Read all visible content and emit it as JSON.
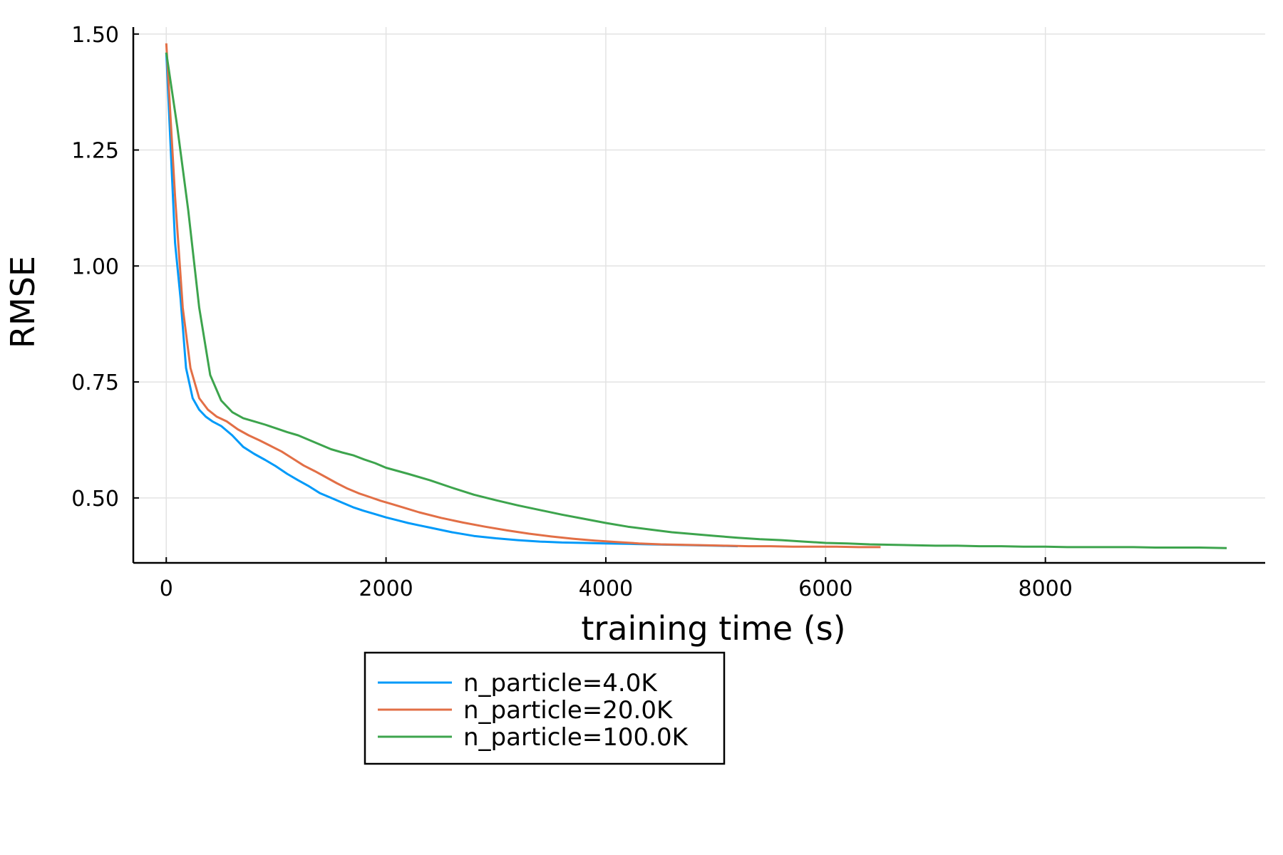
{
  "chart_data": {
    "type": "line",
    "title": "",
    "xlabel": "training time (s)",
    "ylabel": "RMSE",
    "xlim": [
      -300,
      10000
    ],
    "ylim": [
      0.36,
      1.515
    ],
    "xticks": [
      0,
      2000,
      4000,
      6000,
      8000
    ],
    "xtick_labels": [
      "0",
      "2000",
      "4000",
      "6000",
      "8000"
    ],
    "yticks": [
      0.5,
      0.75,
      1.0,
      1.25,
      1.5
    ],
    "ytick_labels": [
      "0.50",
      "0.75",
      "1.00",
      "1.25",
      "1.50"
    ],
    "grid": true,
    "legend_position": "bottom-center, outside below plot",
    "series": [
      {
        "name": "n_particle=4.0K",
        "color": "#009af9",
        "x": [
          0,
          80,
          130,
          180,
          240,
          300,
          360,
          420,
          500,
          600,
          700,
          800,
          900,
          1000,
          1100,
          1200,
          1300,
          1400,
          1500,
          1600,
          1700,
          1800,
          1900,
          2000,
          2100,
          2200,
          2300,
          2400,
          2600,
          2800,
          3000,
          3200,
          3400,
          3600,
          3800,
          4000,
          4200,
          4400,
          4600,
          4800,
          5000,
          5200
        ],
        "y": [
          1.46,
          1.05,
          0.93,
          0.78,
          0.715,
          0.69,
          0.675,
          0.665,
          0.655,
          0.635,
          0.61,
          0.595,
          0.582,
          0.568,
          0.552,
          0.538,
          0.525,
          0.51,
          0.5,
          0.49,
          0.48,
          0.472,
          0.465,
          0.458,
          0.452,
          0.446,
          0.441,
          0.436,
          0.426,
          0.418,
          0.413,
          0.409,
          0.406,
          0.404,
          0.403,
          0.402,
          0.401,
          0.4,
          0.399,
          0.398,
          0.397,
          0.396
        ]
      },
      {
        "name": "n_particle=20.0K",
        "color": "#e26f46",
        "x": [
          0,
          80,
          150,
          220,
          300,
          380,
          460,
          550,
          650,
          750,
          850,
          950,
          1050,
          1150,
          1250,
          1350,
          1450,
          1550,
          1650,
          1750,
          1850,
          1950,
          2050,
          2150,
          2300,
          2500,
          2700,
          2900,
          3100,
          3300,
          3500,
          3700,
          3900,
          4100,
          4300,
          4500,
          4700,
          4900,
          5100,
          5300,
          5500,
          5700,
          5900,
          6100,
          6300,
          6500
        ],
        "y": [
          1.48,
          1.15,
          0.91,
          0.78,
          0.715,
          0.69,
          0.675,
          0.665,
          0.648,
          0.635,
          0.624,
          0.612,
          0.6,
          0.585,
          0.57,
          0.558,
          0.545,
          0.532,
          0.52,
          0.51,
          0.502,
          0.494,
          0.487,
          0.48,
          0.469,
          0.457,
          0.447,
          0.438,
          0.43,
          0.423,
          0.417,
          0.412,
          0.408,
          0.405,
          0.402,
          0.4,
          0.399,
          0.398,
          0.397,
          0.396,
          0.396,
          0.395,
          0.395,
          0.395,
          0.394,
          0.394
        ]
      },
      {
        "name": "n_particle=100.0K",
        "color": "#3da44d",
        "x": [
          0,
          100,
          200,
          300,
          400,
          500,
          600,
          700,
          800,
          900,
          1000,
          1100,
          1200,
          1300,
          1400,
          1500,
          1600,
          1700,
          1800,
          1900,
          2000,
          2200,
          2400,
          2600,
          2800,
          3000,
          3200,
          3400,
          3600,
          3800,
          4000,
          4200,
          4400,
          4600,
          4800,
          5000,
          5200,
          5400,
          5600,
          5800,
          6000,
          6200,
          6400,
          6600,
          6800,
          7000,
          7200,
          7400,
          7600,
          7800,
          8000,
          8200,
          8400,
          8600,
          8800,
          9000,
          9200,
          9400,
          9650
        ],
        "y": [
          1.46,
          1.3,
          1.12,
          0.91,
          0.765,
          0.71,
          0.685,
          0.672,
          0.665,
          0.658,
          0.65,
          0.642,
          0.635,
          0.625,
          0.615,
          0.605,
          0.598,
          0.592,
          0.583,
          0.575,
          0.565,
          0.552,
          0.538,
          0.522,
          0.507,
          0.495,
          0.484,
          0.474,
          0.464,
          0.455,
          0.446,
          0.438,
          0.432,
          0.426,
          0.422,
          0.418,
          0.414,
          0.411,
          0.409,
          0.406,
          0.403,
          0.402,
          0.4,
          0.399,
          0.398,
          0.397,
          0.397,
          0.396,
          0.396,
          0.395,
          0.395,
          0.394,
          0.394,
          0.394,
          0.394,
          0.393,
          0.393,
          0.393,
          0.392
        ]
      }
    ]
  }
}
